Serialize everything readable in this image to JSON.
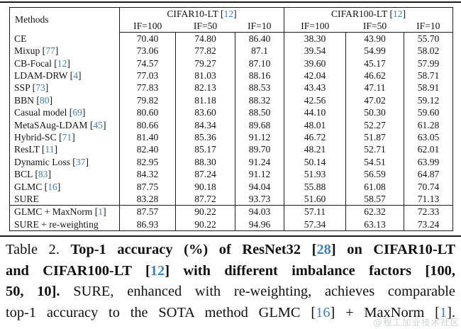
{
  "colors": {
    "cite_blue": "#4181bd",
    "border": "#1c1c1c",
    "text": "#141414",
    "watermark_gray": "#8e9aa6"
  },
  "table": {
    "methods_header": "Methods",
    "groups": [
      {
        "label": "CIFAR10-LT",
        "cite": "12"
      },
      {
        "label": "CIFAR100-LT",
        "cite": "12"
      }
    ],
    "if_headers": [
      "IF=100",
      "IF=50",
      "IF=10",
      "IF=100",
      "IF=50",
      "IF=10"
    ],
    "rows": [
      {
        "method": "CE",
        "cite": null,
        "method_bold": false,
        "values": [
          "70.40",
          "74.80",
          "86.40",
          "38.30",
          "43.90",
          "55.70"
        ],
        "bold": [
          false,
          false,
          false,
          false,
          false,
          false
        ],
        "separator_after": false
      },
      {
        "method": "Mixup",
        "cite": "77",
        "method_bold": false,
        "values": [
          "73.06",
          "77.82",
          "87.1",
          "39.54",
          "54.99",
          "58.02"
        ],
        "bold": [
          false,
          false,
          false,
          false,
          false,
          false
        ],
        "separator_after": false
      },
      {
        "method": "CB-Focal",
        "cite": "12",
        "method_bold": false,
        "values": [
          "74.57",
          "79.27",
          "87.10",
          "39.60",
          "45.17",
          "57.99"
        ],
        "bold": [
          false,
          false,
          false,
          false,
          false,
          false
        ],
        "separator_after": false
      },
      {
        "method": "LDAM-DRW",
        "cite": "4",
        "method_bold": false,
        "values": [
          "77.03",
          "81.03",
          "88.16",
          "42.04",
          "46.62",
          "58.71"
        ],
        "bold": [
          false,
          false,
          false,
          false,
          false,
          false
        ],
        "separator_after": false
      },
      {
        "method": "SSP",
        "cite": "73",
        "method_bold": false,
        "values": [
          "77.83",
          "82.13",
          "88.53",
          "43.43",
          "47.11",
          "58.91"
        ],
        "bold": [
          false,
          false,
          false,
          false,
          false,
          false
        ],
        "separator_after": false
      },
      {
        "method": "BBN",
        "cite": "80",
        "method_bold": false,
        "values": [
          "79.82",
          "81.18",
          "88.32",
          "42.56",
          "47.02",
          "59.12"
        ],
        "bold": [
          false,
          false,
          false,
          false,
          false,
          false
        ],
        "separator_after": false
      },
      {
        "method": "Casual model",
        "cite": "69",
        "method_bold": false,
        "values": [
          "80.60",
          "83.60",
          "88.50",
          "44.10",
          "50.30",
          "59.60"
        ],
        "bold": [
          false,
          false,
          false,
          false,
          false,
          false
        ],
        "separator_after": false
      },
      {
        "method": "MetaSAug-LDAM",
        "cite": "45",
        "method_bold": false,
        "values": [
          "80.66",
          "84.34",
          "89.68",
          "48.01",
          "52.27",
          "61.28"
        ],
        "bold": [
          false,
          false,
          false,
          false,
          false,
          false
        ],
        "separator_after": false
      },
      {
        "method": "Hybrid-SC",
        "cite": "71",
        "method_bold": false,
        "values": [
          "81.40",
          "85.36",
          "91.12",
          "46.72",
          "51.87",
          "63.05"
        ],
        "bold": [
          false,
          false,
          false,
          false,
          false,
          false
        ],
        "separator_after": false
      },
      {
        "method": "ResLT",
        "cite": "11",
        "method_bold": false,
        "values": [
          "82.40",
          "85.17",
          "89.70",
          "48.21",
          "52.71",
          "62.01"
        ],
        "bold": [
          false,
          false,
          false,
          false,
          false,
          false
        ],
        "separator_after": false
      },
      {
        "method": "Dynamic Loss",
        "cite": "37",
        "method_bold": false,
        "values": [
          "82.95",
          "88.30",
          "91.24",
          "50.14",
          "54.51",
          "63.99"
        ],
        "bold": [
          false,
          false,
          false,
          false,
          false,
          false
        ],
        "separator_after": false
      },
      {
        "method": "BCL",
        "cite": "83",
        "method_bold": false,
        "values": [
          "84.32",
          "87.24",
          "91.12",
          "51.93",
          "56.59",
          "64.87"
        ],
        "bold": [
          false,
          false,
          false,
          false,
          false,
          false
        ],
        "separator_after": false
      },
      {
        "method": "GLMC",
        "cite": "16",
        "method_bold": false,
        "values": [
          "87.75",
          "90.18",
          "94.04",
          "55.88",
          "61.08",
          "70.74"
        ],
        "bold": [
          true,
          false,
          false,
          false,
          false,
          false
        ],
        "separator_after": false
      },
      {
        "method": "SURE",
        "cite": null,
        "method_bold": true,
        "values": [
          "83.28",
          "87.72",
          "93.73",
          "51.60",
          "58.57",
          "71.13"
        ],
        "bold": [
          false,
          false,
          false,
          false,
          false,
          false
        ],
        "separator_after": true
      },
      {
        "method": "GLMC + MaxNorm",
        "cite": "1",
        "method_bold": false,
        "values": [
          "87.57",
          "90.22",
          "94.03",
          "57.11",
          "62.32",
          "72.33"
        ],
        "bold": [
          false,
          true,
          false,
          false,
          false,
          false
        ],
        "separator_after": false
      },
      {
        "method": "SURE + re-weighting",
        "cite": null,
        "method_bold": true,
        "values": [
          "86.93",
          "90.22",
          "94.96",
          "57.34",
          "63.13",
          "73.24"
        ],
        "bold": [
          false,
          true,
          true,
          true,
          true,
          true
        ],
        "separator_after": false
      }
    ]
  },
  "caption": {
    "lines": [
      [
        {
          "text": "Table 2. ",
          "bold": false,
          "cite": false
        },
        {
          "text": "Top-1 accuracy (%) of ResNet32 [",
          "bold": true,
          "cite": false
        },
        {
          "text": "28",
          "bold": true,
          "cite": true
        },
        {
          "text": "] on CIFAR10-LT",
          "bold": true,
          "cite": false
        }
      ],
      [
        {
          "text": "and CIFAR100-LT [",
          "bold": true,
          "cite": false
        },
        {
          "text": "12",
          "bold": true,
          "cite": true
        },
        {
          "text": "] with different imbalance factors [100,",
          "bold": true,
          "cite": false
        }
      ],
      [
        {
          "text": "50, 10]. ",
          "bold": true,
          "cite": false
        },
        {
          "text": "SURE, enhanced with re-weighting, achieves comparable",
          "bold": false,
          "cite": false
        }
      ],
      [
        {
          "text": "top-1 accuracy to the SOTA method GLMC [",
          "bold": false,
          "cite": false
        },
        {
          "text": "16",
          "bold": false,
          "cite": true
        },
        {
          "text": "] + MaxNorm [",
          "bold": false,
          "cite": false
        },
        {
          "text": "1",
          "bold": false,
          "cite": true
        },
        {
          "text": "].",
          "bold": false,
          "cite": false
        }
      ]
    ]
  },
  "watermark": {
    "text": "@程工加业技术社区"
  }
}
